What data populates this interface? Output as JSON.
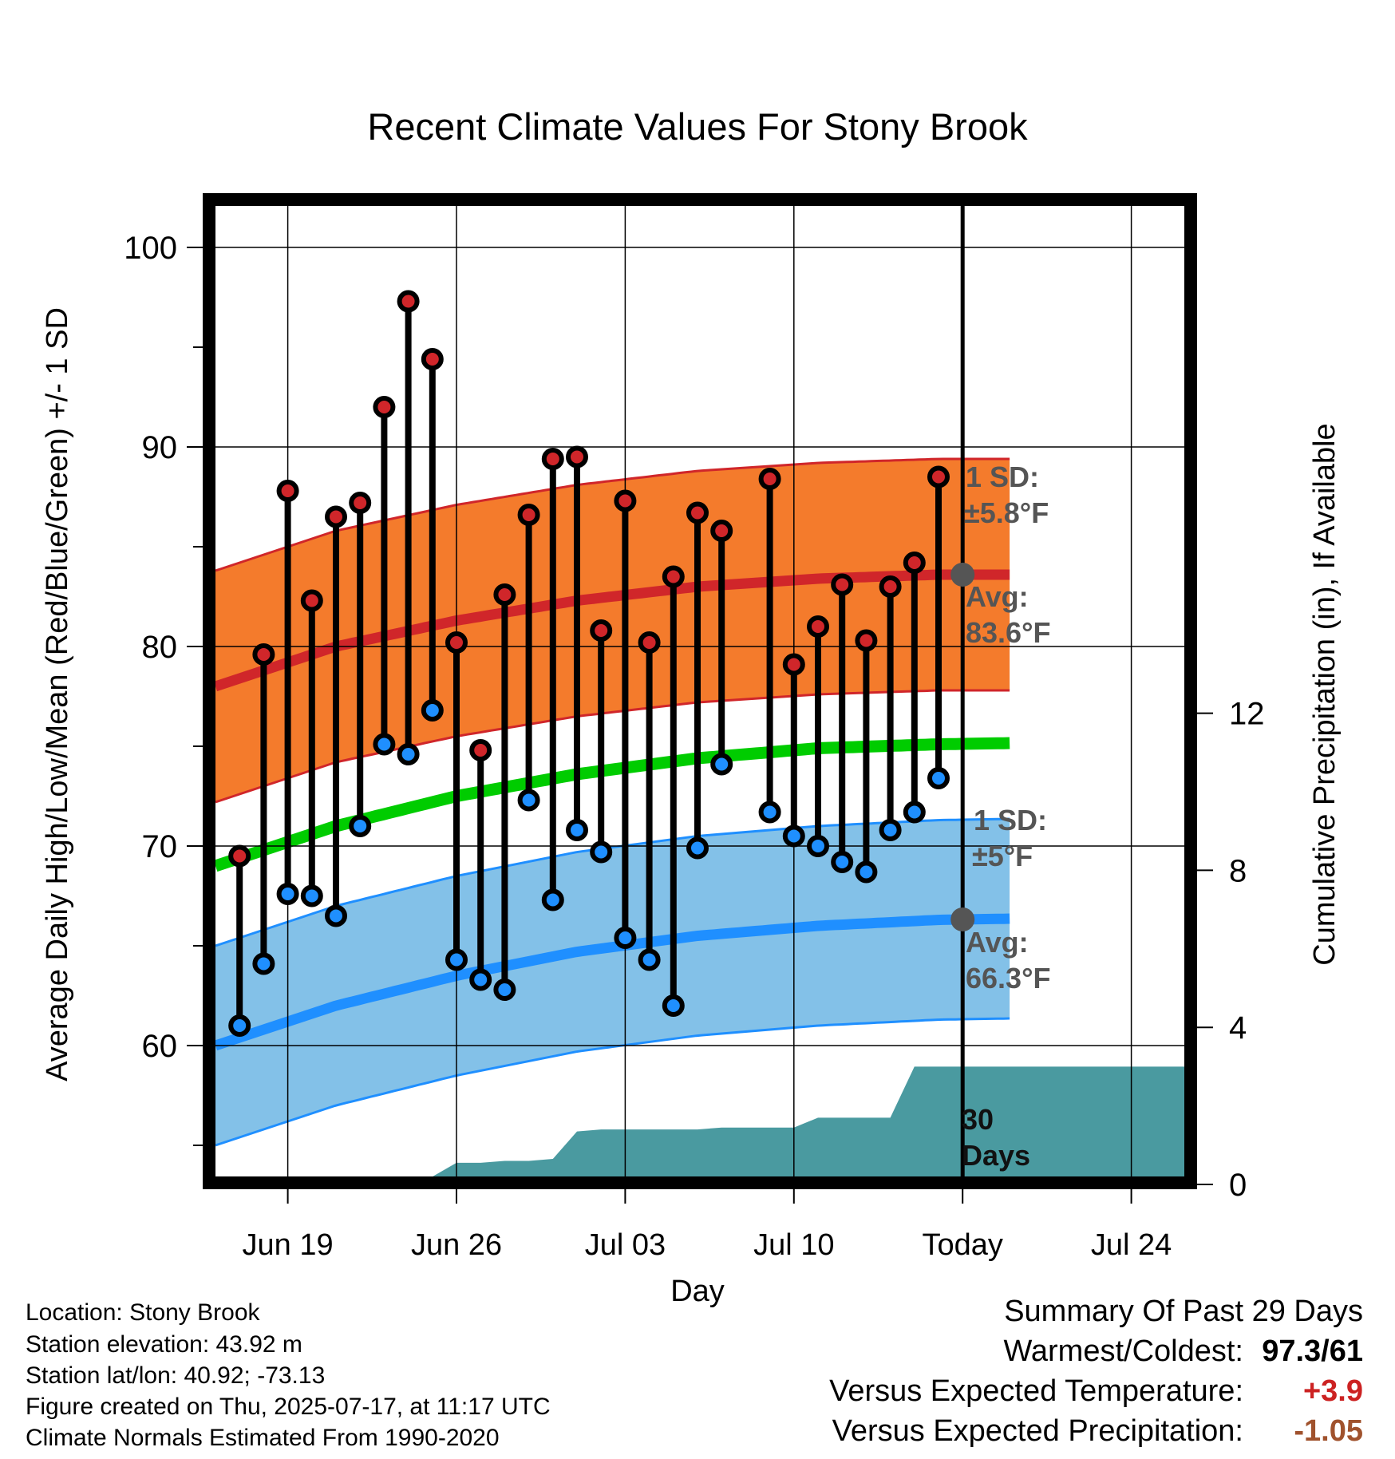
{
  "chart_data": {
    "type": "line",
    "title": "Recent Climate Values For Stony Brook",
    "xlabel": "Day",
    "ylabel": "Average Daily High/Low/Mean (Red/Blue/Green) +/- 1 SD",
    "y2label": "Cumulative Precipitation (in), If Available",
    "ylim": [
      52.8,
      102.5
    ],
    "y2lim": [
      0,
      20
    ],
    "xlim": [
      0,
      59
    ],
    "y_ticks": [
      60,
      70,
      80,
      90,
      100
    ],
    "y2_ticks": [
      0,
      4,
      8,
      12
    ],
    "x_ticks": [
      {
        "day": 3,
        "label": "Jun 19"
      },
      {
        "day": 10,
        "label": "Jun 26"
      },
      {
        "day": 17,
        "label": "Jul 03"
      },
      {
        "day": 24,
        "label": "Jul 10"
      },
      {
        "day": 31,
        "label": "Today"
      },
      {
        "day": 38,
        "label": "Jul 24"
      }
    ],
    "today_day": 31,
    "grid": true,
    "normals": {
      "day": [
        0,
        5,
        10,
        15,
        20,
        25,
        30,
        35,
        41
      ],
      "avg_high": [
        78.0,
        80.0,
        81.3,
        82.3,
        83.0,
        83.4,
        83.6,
        83.6,
        83.5
      ],
      "avg_low": [
        60.0,
        62.0,
        63.5,
        64.7,
        65.5,
        66.0,
        66.3,
        66.4,
        66.4
      ],
      "avg_mean": [
        69.0,
        71.0,
        72.5,
        73.6,
        74.4,
        74.9,
        75.1,
        75.2,
        75.0
      ],
      "high_sd": 5.8,
      "low_sd": 5.0
    },
    "daily": {
      "day": [
        1,
        2,
        3,
        4,
        5,
        6,
        7,
        8,
        9,
        10,
        11,
        12,
        13,
        14,
        15,
        16,
        17,
        18,
        19,
        20,
        21,
        22,
        23,
        24,
        25,
        26,
        27,
        28,
        29,
        30
      ],
      "high": [
        69.5,
        79.6,
        87.8,
        82.3,
        86.5,
        87.2,
        92.0,
        97.3,
        94.4,
        80.2,
        74.8,
        82.6,
        86.6,
        89.4,
        89.5,
        80.8,
        87.3,
        80.2,
        83.5,
        86.7,
        85.8,
        0,
        88.4,
        79.1,
        81.0,
        83.1,
        80.3,
        83.0,
        84.2,
        88.5
      ],
      "low": [
        61.0,
        64.1,
        67.6,
        67.5,
        66.5,
        71.0,
        75.1,
        74.6,
        76.8,
        64.3,
        63.3,
        62.8,
        72.3,
        67.3,
        70.8,
        69.7,
        65.4,
        64.3,
        62.0,
        69.9,
        74.1,
        0,
        71.7,
        70.5,
        70.0,
        69.2,
        68.7,
        70.8,
        71.7,
        73.4
      ],
      "missing_day": 22
    },
    "precip_cumulative": {
      "day": [
        1,
        2,
        4,
        5,
        6,
        7,
        8,
        9,
        10,
        11,
        12,
        13,
        14,
        15,
        16,
        17,
        19,
        20,
        21,
        22,
        23,
        24,
        25,
        26,
        27,
        28,
        29,
        30,
        31,
        41
      ],
      "value": [
        0.0,
        0.05,
        0.05,
        0.1,
        0.15,
        0.15,
        0.15,
        0.2,
        0.55,
        0.55,
        0.6,
        0.6,
        0.65,
        1.35,
        1.4,
        1.4,
        1.4,
        1.4,
        1.45,
        1.45,
        1.45,
        1.45,
        1.7,
        1.7,
        1.7,
        1.7,
        3.0,
        3.0,
        3.0,
        3.0
      ]
    },
    "annotations": {
      "high_sd_line1": "1 SD:",
      "high_sd_line2": "±5.8°F",
      "high_avg_line1": "Avg:",
      "high_avg_line2": "83.6°F",
      "low_sd_line1": "1 SD:",
      "low_sd_line2": "±5°F",
      "low_avg_line1": "Avg:",
      "low_avg_line2": "66.3°F",
      "precip_days_line1": "30",
      "precip_days_line2": "Days"
    },
    "colors": {
      "high_band": "#f47b2c",
      "high_line": "#d0262a",
      "low_band": "#83c1e8",
      "low_line": "#1f8fff",
      "mean_line": "#00cc00",
      "precip": "#4a9aa0",
      "marker_high": "#d0262a",
      "marker_low": "#1f8fff",
      "annotation": "#555555"
    }
  },
  "info": {
    "location": "Location: Stony Brook",
    "elevation": "Station elevation: 43.92 m",
    "latlon": "Station lat/lon: 40.92; -73.13",
    "created": "Figure created on Thu, 2025-07-17, at 11:17 UTC",
    "normals": "Climate Normals Estimated From 1990-2020"
  },
  "summary": {
    "heading": "Summary Of Past 29 Days",
    "warm_cold_label": "Warmest/Coldest:",
    "warm_cold_value": "97.3/61",
    "temp_label": "Versus Expected Temperature:",
    "temp_value": "+3.9",
    "temp_color": "#cc2222",
    "precip_label": "Versus Expected Precipitation:",
    "precip_value": "-1.05",
    "precip_color": "#a0522d"
  }
}
